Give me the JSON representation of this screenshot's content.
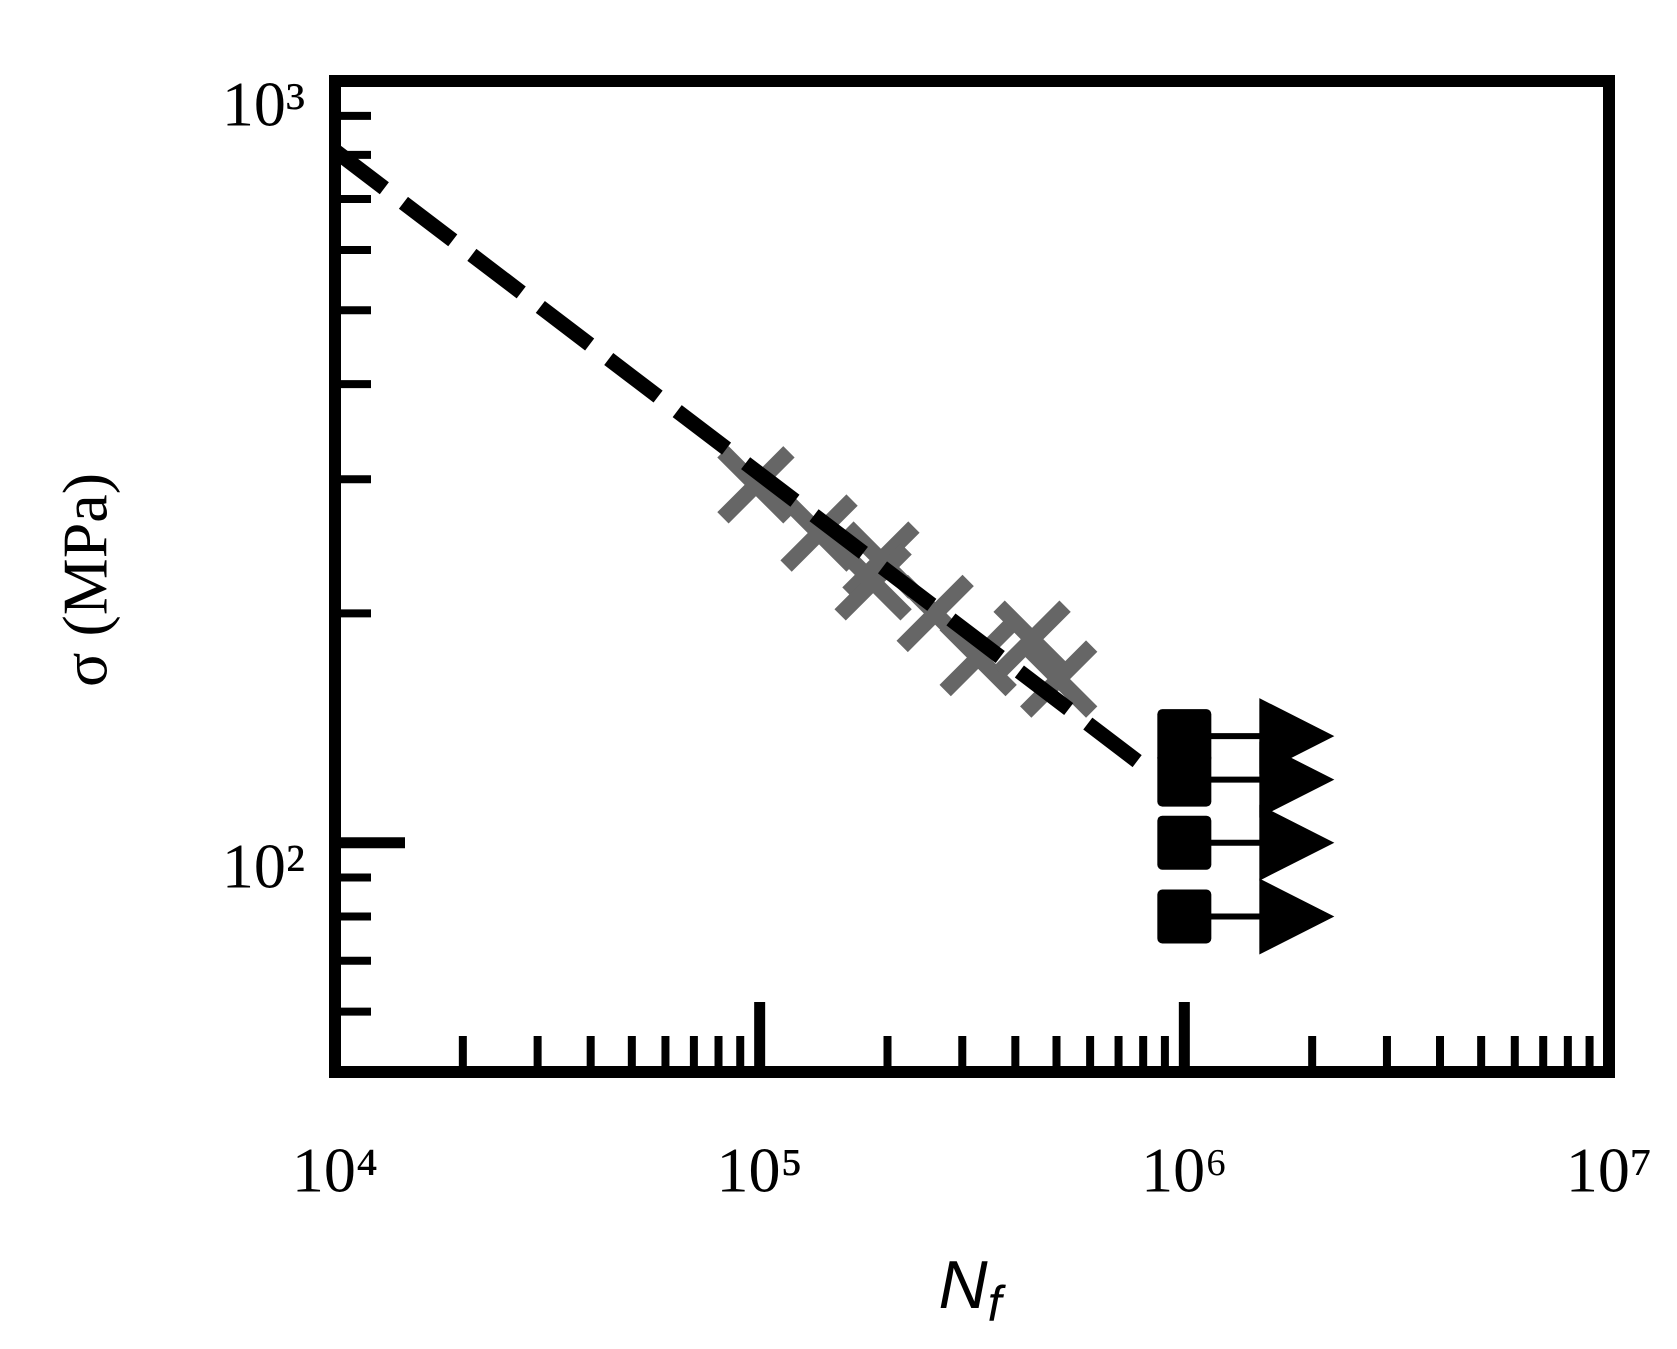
{
  "chart_data": {
    "type": "scatter",
    "ylabel": "σ (MPa)",
    "xlabel": {
      "main": "N",
      "sub": "f"
    },
    "log_x": true,
    "log_y": true,
    "xlim": [
      10000,
      10000000
    ],
    "ylim": [
      50,
      1000
    ],
    "xticks": [
      {
        "value": 10000,
        "label": "10⁴"
      },
      {
        "value": 100000,
        "label": "10⁵"
      },
      {
        "value": 1000000,
        "label": "10⁶"
      },
      {
        "value": 10000000,
        "label": "10⁷"
      }
    ],
    "xminorticks": [
      20000,
      30000,
      40000,
      50000,
      60000,
      70000,
      80000,
      90000,
      200000,
      300000,
      400000,
      500000,
      600000,
      700000,
      800000,
      900000,
      2000000,
      3000000,
      4000000,
      5000000,
      6000000,
      7000000,
      8000000,
      9000000
    ],
    "yticks": [
      {
        "value": 100,
        "label": "10²"
      },
      {
        "value": 1000,
        "label": "10³"
      }
    ],
    "yminorticks": [
      60,
      70,
      80,
      90,
      200,
      300,
      400,
      500,
      600,
      700,
      800,
      900
    ],
    "series": [
      {
        "marker": "cross",
        "color": "#666666",
        "x": [
          98000,
          138000,
          193000,
          185000,
          259000,
          327000,
          438000,
          506000
        ],
        "values": [
          295,
          255,
          235,
          220,
          200,
          175,
          185,
          164
        ]
      },
      {
        "marker": "runout",
        "color": "#000000",
        "x": [
          1000000,
          1000000,
          1000000,
          1000000
        ],
        "values": [
          138,
          121,
          100,
          80
        ]
      },
      {
        "marker": "dashed-line",
        "color": "#000000",
        "x": [
          10000,
          850000
        ],
        "values": [
          810,
          123
        ]
      }
    ]
  }
}
